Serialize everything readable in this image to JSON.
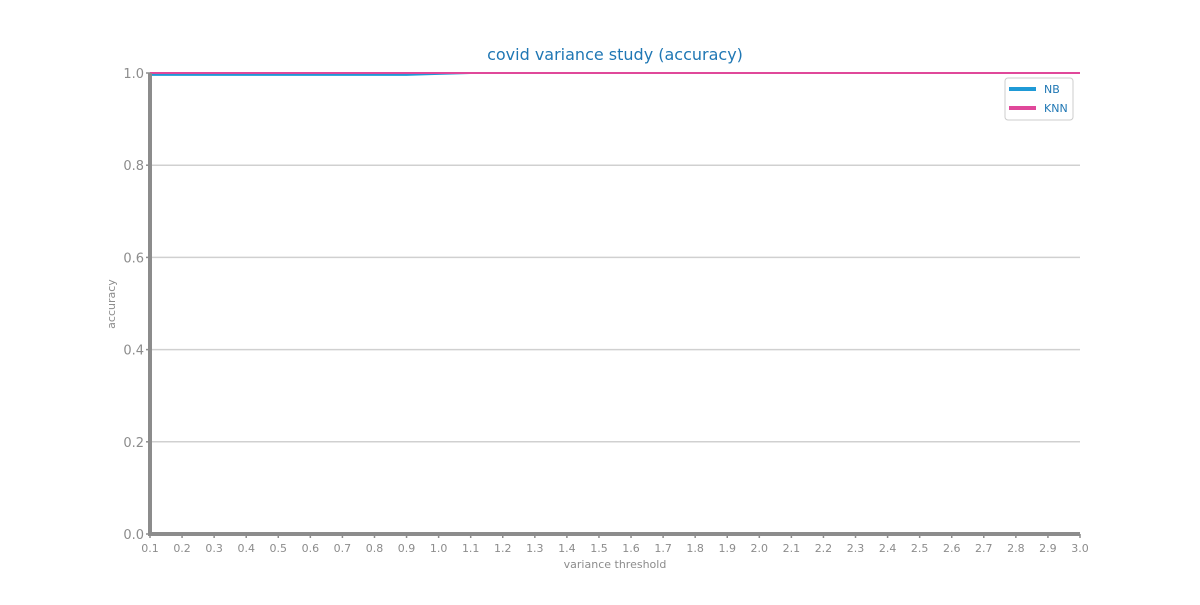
{
  "chart_data": {
    "type": "line",
    "title": "covid variance study (accuracy)",
    "xlabel": "variance threshold",
    "ylabel": "accuracy",
    "x": [
      0.1,
      0.2,
      0.3,
      0.4,
      0.5,
      0.6,
      0.7,
      0.8,
      0.9,
      1.0,
      1.1,
      1.2,
      1.3,
      1.4,
      1.5,
      1.6,
      1.7,
      1.8,
      1.9,
      2.0,
      2.1,
      2.2,
      2.3,
      2.4,
      2.5,
      2.6,
      2.7,
      2.8,
      2.9,
      3.0
    ],
    "x_tick_labels": [
      "0.1",
      "0.2",
      "0.3",
      "0.4",
      "0.5",
      "0.6",
      "0.7",
      "0.8",
      "0.9",
      "1.0",
      "1.1",
      "1.2",
      "1.3",
      "1.4",
      "1.5",
      "1.6",
      "1.7",
      "1.8",
      "1.9",
      "2.0",
      "2.1",
      "2.2",
      "2.3",
      "2.4",
      "2.5",
      "2.6",
      "2.7",
      "2.8",
      "2.9",
      "3.0"
    ],
    "xlim": [
      0.1,
      3.0
    ],
    "ylim": [
      0.0,
      1.0
    ],
    "y_ticks": [
      0.0,
      0.2,
      0.4,
      0.6,
      0.8,
      1.0
    ],
    "y_tick_labels": [
      "0.0",
      "0.2",
      "0.4",
      "0.6",
      "0.8",
      "1.0"
    ],
    "grid": "horizontal",
    "legend_position": "top-right",
    "series": [
      {
        "name": "NB",
        "color": "#1f9ad6",
        "values": [
          0.996,
          0.996,
          0.996,
          0.996,
          0.996,
          0.996,
          0.996,
          0.996,
          0.996,
          0.998,
          1.0,
          1.0,
          1.0,
          1.0,
          1.0,
          1.0,
          1.0,
          1.0,
          1.0,
          1.0,
          1.0,
          1.0,
          1.0,
          1.0,
          1.0,
          1.0,
          1.0,
          1.0,
          1.0,
          1.0
        ]
      },
      {
        "name": "KNN",
        "color": "#e0489a",
        "values": [
          1.0,
          1.0,
          1.0,
          1.0,
          1.0,
          1.0,
          1.0,
          1.0,
          1.0,
          1.0,
          1.0,
          1.0,
          1.0,
          1.0,
          1.0,
          1.0,
          1.0,
          1.0,
          1.0,
          1.0,
          1.0,
          1.0,
          1.0,
          1.0,
          1.0,
          1.0,
          1.0,
          1.0,
          1.0,
          1.0
        ]
      }
    ]
  }
}
